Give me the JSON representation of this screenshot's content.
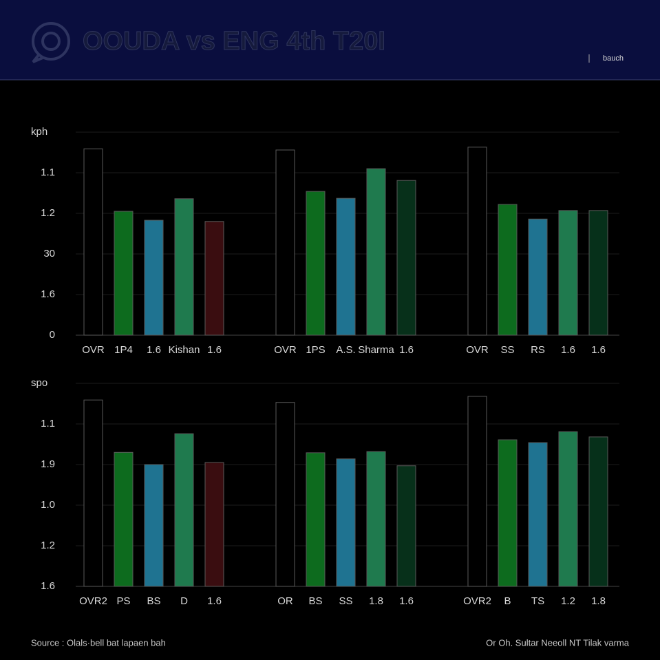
{
  "header": {
    "title": "OOUDA vs ENG 4th T20I",
    "link": "bauch"
  },
  "chart_data": [
    {
      "type": "bar",
      "ylabel": "kph",
      "ylim": [
        0,
        5
      ],
      "grid": true,
      "yticks": [
        0,
        {
          "value": 1,
          "label": "1.6"
        },
        {
          "value": 2,
          "label": "30"
        },
        {
          "value": 3,
          "label": "1.2"
        },
        {
          "value": 4,
          "label": "1.1"
        }
      ],
      "groups": [
        {
          "categories": [
            "OVR",
            "1P4",
            "1.6",
            "Kishan",
            "1.6"
          ],
          "values": [
            4.59,
            3.05,
            2.83,
            3.36,
            2.8
          ],
          "colors": [
            "#000000",
            "#0d6b1e",
            "#1f7391",
            "#1f7a4e",
            "#3a0d10"
          ]
        },
        {
          "categories": [
            "OVR",
            "1PS",
            "A.S.",
            "Sharma",
            "1.6"
          ],
          "values": [
            4.56,
            3.54,
            3.37,
            4.1,
            3.81
          ],
          "colors": [
            "#000000",
            "#0d6b1e",
            "#1f7391",
            "#1f7a4e",
            "#07301a"
          ]
        },
        {
          "categories": [
            "OVR",
            "SS",
            "RS",
            "1.6",
            "1.6"
          ],
          "values": [
            4.63,
            3.22,
            2.86,
            3.07,
            3.07
          ],
          "colors": [
            "#000000",
            "#0d6b1e",
            "#1f7391",
            "#1f7a4e",
            "#06301a"
          ]
        }
      ]
    },
    {
      "type": "bar",
      "ylabel": "spo",
      "ylim": [
        0,
        5
      ],
      "grid": true,
      "yticks": [
        {
          "value": 0,
          "label": "1.6"
        },
        {
          "value": 1,
          "label": "1.2"
        },
        {
          "value": 2,
          "label": "1.0"
        },
        {
          "value": 3,
          "label": "1.9"
        },
        {
          "value": 4,
          "label": "1.1"
        }
      ],
      "groups": [
        {
          "categories": [
            "OVR2",
            "PS",
            "BS",
            "D",
            "1.6"
          ],
          "values": [
            4.59,
            3.3,
            3.0,
            3.76,
            3.05
          ],
          "colors": [
            "#000000",
            "#0d6b1e",
            "#1f7391",
            "#1f7a4e",
            "#3a0d10"
          ]
        },
        {
          "categories": [
            "OR",
            "BS",
            "SS",
            "1.8",
            "1.6"
          ],
          "values": [
            4.53,
            3.29,
            3.14,
            3.32,
            2.97
          ],
          "colors": [
            "#000000",
            "#0d6b1e",
            "#1f7391",
            "#1f7a4e",
            "#07301a"
          ]
        },
        {
          "categories": [
            "OVR2",
            "B",
            "TS",
            "1.2",
            "1.8"
          ],
          "values": [
            4.68,
            3.61,
            3.54,
            3.81,
            3.68
          ],
          "colors": [
            "#000000",
            "#0d6b1e",
            "#1f7391",
            "#1f7a4e",
            "#06301a"
          ]
        }
      ]
    }
  ],
  "footer": {
    "source": "Source : Olals·bell bat lapaen bah",
    "credit": "Or Oh. Sultar Neeoll  NT Tilak varma"
  }
}
